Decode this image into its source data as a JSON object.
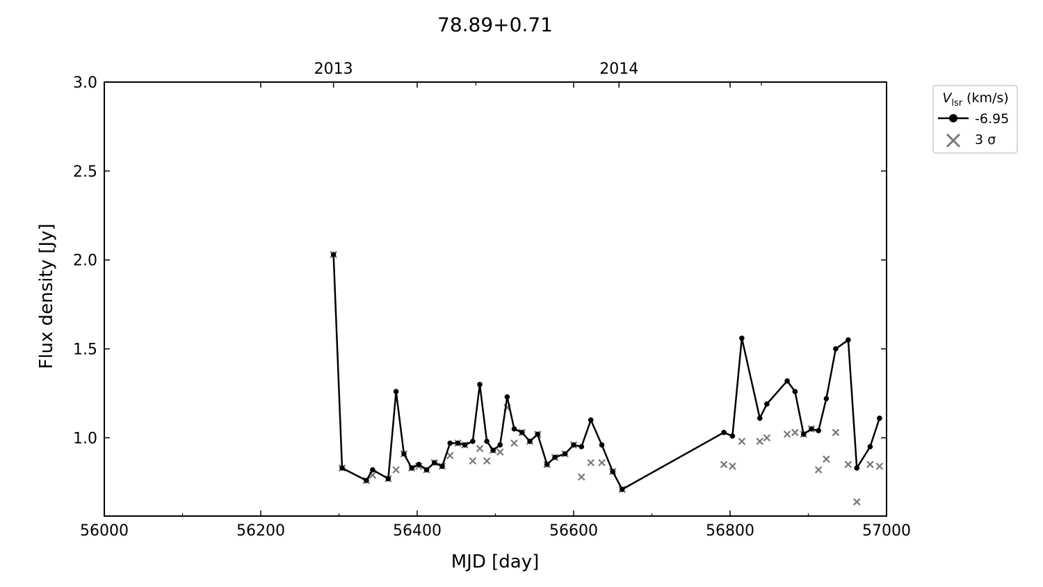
{
  "chart_data": {
    "type": "line",
    "title": "78.89+0.71",
    "xlabel": "MJD [day]",
    "ylabel": "Flux density [Jy]",
    "xlim": [
      56000,
      57000
    ],
    "ylim": [
      0.56,
      3.0
    ],
    "x_ticks": [
      56000,
      56200,
      56400,
      56600,
      56800,
      57000
    ],
    "y_ticks": [
      1.0,
      1.5,
      2.0,
      2.5,
      3.0
    ],
    "top_axis": {
      "ticks": [
        {
          "label": "2013",
          "mjd": 56293
        },
        {
          "label": "2014",
          "mjd": 56658
        }
      ],
      "minor_ticks_mjd": [
        56475,
        56840
      ]
    },
    "grid": false,
    "legend": {
      "position": "outside-top-right",
      "title_symbol": "V",
      "title_subscript": "lsr",
      "title_unit": "(km/s)",
      "entries": [
        {
          "label": "-6.95",
          "marker": "circle-line",
          "color": "#000000"
        },
        {
          "label": "3 σ",
          "marker": "x",
          "color": "#777777"
        }
      ]
    },
    "series": [
      {
        "name": "-6.95",
        "color": "#000000",
        "x": [
          56293,
          56304,
          56335,
          56343,
          56363,
          56373,
          56383,
          56393,
          56402,
          56412,
          56422,
          56432,
          56442,
          56452,
          56461,
          56471,
          56480,
          56489,
          56497,
          56506,
          56515,
          56524,
          56534,
          56544,
          56554,
          56566,
          56576,
          56589,
          56600,
          56610,
          56622,
          56636,
          56650,
          56662,
          56792,
          56803,
          56815,
          56838,
          56847,
          56873,
          56883,
          56894,
          56904,
          56913,
          56923,
          56935,
          56951,
          56962,
          56979,
          56991
        ],
        "y": [
          2.03,
          0.83,
          0.76,
          0.82,
          0.77,
          1.26,
          0.91,
          0.83,
          0.85,
          0.82,
          0.86,
          0.84,
          0.97,
          0.97,
          0.96,
          0.98,
          1.3,
          0.98,
          0.93,
          0.96,
          1.23,
          1.05,
          1.03,
          0.98,
          1.02,
          0.85,
          0.89,
          0.91,
          0.96,
          0.95,
          1.1,
          0.96,
          0.81,
          0.71,
          1.03,
          1.01,
          1.56,
          1.11,
          1.19,
          1.32,
          1.26,
          1.02,
          1.05,
          1.04,
          1.22,
          1.5,
          1.55,
          0.83,
          0.95,
          1.11
        ]
      },
      {
        "name": "3 σ",
        "color": "#777777",
        "marker": "x",
        "x": [
          56293,
          56304,
          56335,
          56343,
          56363,
          56373,
          56383,
          56393,
          56402,
          56412,
          56422,
          56432,
          56442,
          56452,
          56461,
          56471,
          56480,
          56489,
          56497,
          56506,
          56515,
          56524,
          56534,
          56544,
          56554,
          56566,
          56576,
          56589,
          56600,
          56610,
          56622,
          56636,
          56650,
          56662,
          56792,
          56803,
          56815,
          56838,
          56847,
          56873,
          56883,
          56894,
          56904,
          56913,
          56923,
          56935,
          56951,
          56962,
          56979,
          56991
        ],
        "y": [
          2.03,
          0.83,
          0.76,
          0.79,
          0.77,
          0.82,
          0.91,
          0.83,
          0.84,
          0.82,
          0.86,
          0.84,
          0.9,
          0.97,
          0.96,
          0.87,
          0.94,
          0.87,
          0.93,
          0.92,
          1.17,
          0.97,
          1.03,
          0.98,
          1.02,
          0.85,
          0.89,
          0.91,
          0.96,
          0.78,
          0.86,
          0.86,
          0.81,
          0.71,
          0.85,
          0.84,
          0.98,
          0.98,
          1.0,
          1.02,
          1.03,
          1.02,
          1.05,
          0.82,
          0.88,
          1.03,
          0.85,
          0.64,
          0.85,
          0.84
        ]
      }
    ]
  }
}
